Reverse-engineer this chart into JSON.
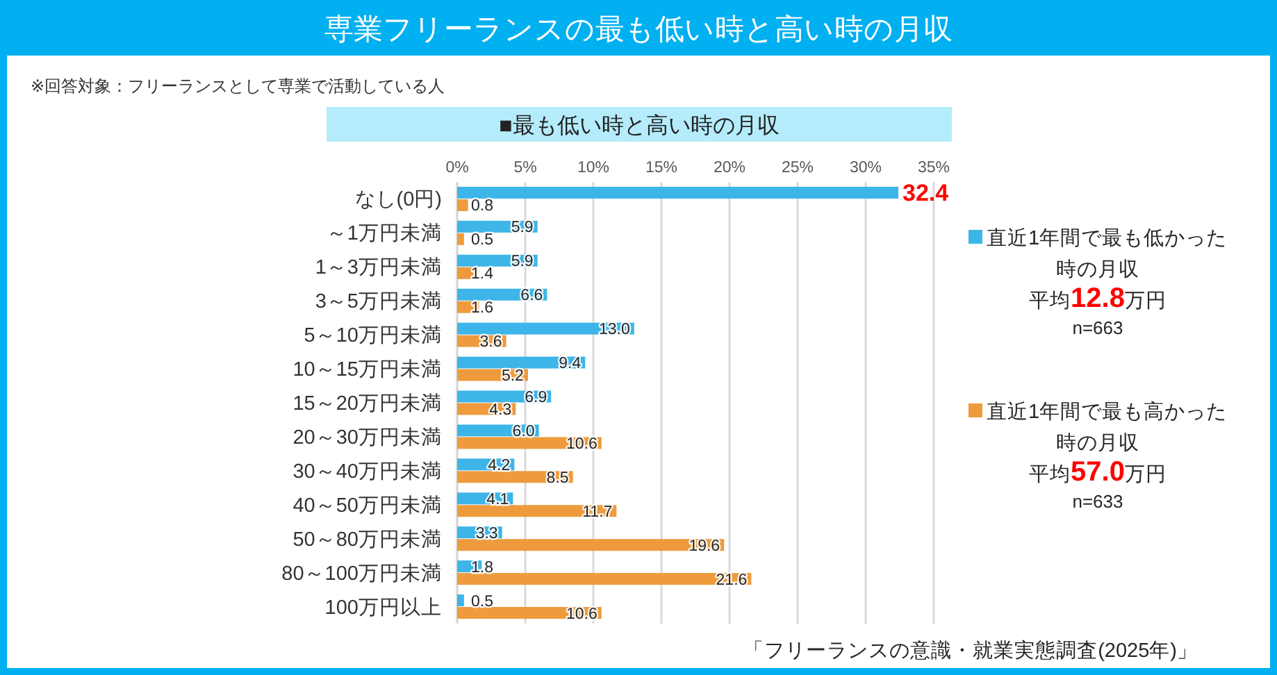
{
  "chart_data": {
    "type": "bar",
    "orientation": "horizontal",
    "title": "専業フリーランスの最も低い時と高い時の月収",
    "subtitle": "■最も低い時と高い時の月収",
    "annotations": [
      "※回答対象：フリーランスとして専業で活動している人",
      "平均12.8万円",
      "n=663",
      "平均57.0万円",
      "n=633",
      "「フリーランスの意識・就業実態調査(2025年)」"
    ],
    "categories": [
      "なし(0円)",
      "～1万円未満",
      "1～3万円未満",
      "3～5万円未満",
      "5～10万円未満",
      "10～15万円未満",
      "15～20万円未満",
      "20～30万円未満",
      "30～40万円未満",
      "40～50万円未満",
      "50～80万円未満",
      "80～100万円未満",
      "100万円以上"
    ],
    "series": [
      {
        "name": "直近1年間で最も低かった時の月収",
        "color": "#3db5e8",
        "values": [
          32.4,
          5.9,
          5.9,
          6.6,
          13.0,
          9.4,
          6.9,
          6.0,
          4.2,
          4.1,
          3.3,
          1.8,
          0.5
        ],
        "value_labels": [
          "32.4",
          "5.9",
          "5.9",
          "6.6",
          "13.0",
          "9.4",
          "6.9",
          "6.0",
          "4.2",
          "4.1",
          "3.3",
          "1.8",
          "0.5"
        ]
      },
      {
        "name": "直近1年間で最も高かった時の月収",
        "color": "#ed9b3c",
        "values": [
          0.8,
          0.5,
          1.4,
          1.6,
          3.6,
          5.2,
          4.3,
          10.6,
          8.5,
          11.7,
          19.6,
          21.6,
          10.6
        ],
        "value_labels": [
          "0.8",
          "0.5",
          "1.4",
          "1.6",
          "3.6",
          "5.2",
          "4.3",
          "10.6",
          "8.5",
          "11.7",
          "19.6",
          "21.6",
          "10.6"
        ]
      }
    ],
    "xlim": [
      0,
      35
    ],
    "xticks": [
      {
        "value": 0,
        "label": "0%"
      },
      {
        "value": 5,
        "label": "5%"
      },
      {
        "value": 10,
        "label": "10%"
      },
      {
        "value": 15,
        "label": "15%"
      },
      {
        "value": 20,
        "label": "20%"
      },
      {
        "value": 25,
        "label": "25%"
      },
      {
        "value": 30,
        "label": "30%"
      },
      {
        "value": 35,
        "label": "35%"
      }
    ],
    "grid": "x",
    "legend": "right"
  }
}
